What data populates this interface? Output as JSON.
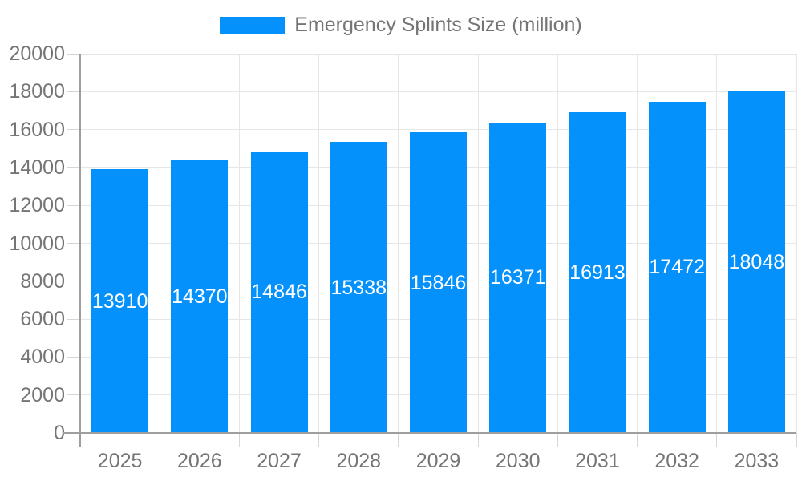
{
  "legend": {
    "label": "Emergency Splints Size (million)"
  },
  "colors": {
    "bar": "#0591fb",
    "grid": "#e6e6e6",
    "axis": "#9e9e9e",
    "tick": "#d6d6d6",
    "axis_text": "#757575",
    "value_text": "#ffffff",
    "background": "#ffffff"
  },
  "chart_data": {
    "type": "bar",
    "title": "Emergency Splints Size (million)",
    "categories": [
      "2025",
      "2026",
      "2027",
      "2028",
      "2029",
      "2030",
      "2031",
      "2032",
      "2033"
    ],
    "values": [
      13910,
      14370,
      14846,
      15338,
      15846,
      16371,
      16913,
      17472,
      18048
    ],
    "series": [
      {
        "name": "Emergency Splints Size (million)",
        "values": [
          13910,
          14370,
          14846,
          15338,
          15846,
          16371,
          16913,
          17472,
          18048
        ]
      }
    ],
    "value_labels_shown": true,
    "value_label_position": "inside-center",
    "xlabel": "",
    "ylabel": "",
    "ylim": [
      0,
      20000
    ],
    "ytick_step": 2000,
    "yticks": [
      0,
      2000,
      4000,
      6000,
      8000,
      10000,
      12000,
      14000,
      16000,
      18000,
      20000
    ],
    "grid": true,
    "legend_position": "top-center"
  }
}
